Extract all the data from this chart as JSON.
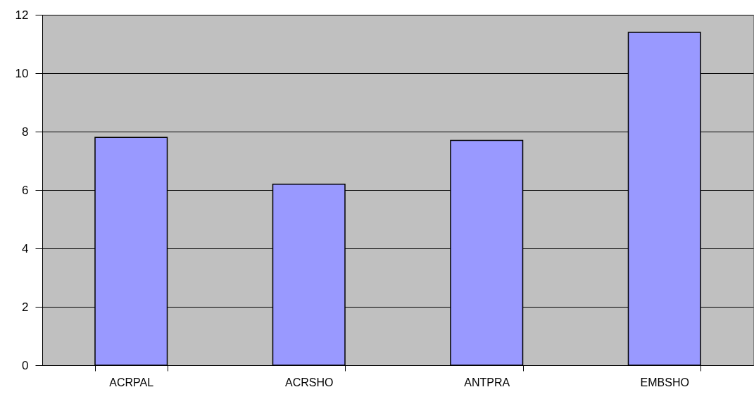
{
  "chart_data": {
    "type": "bar",
    "categories": [
      "ACRPAL",
      "ACRSHO",
      "ANTPRA",
      "EMBSHO"
    ],
    "values": [
      7.8,
      6.2,
      7.7,
      11.4
    ],
    "color": "#9999ff",
    "ylim": [
      0,
      12
    ],
    "yticks": [
      0,
      2,
      4,
      6,
      8,
      10,
      12
    ],
    "grid": "y"
  }
}
